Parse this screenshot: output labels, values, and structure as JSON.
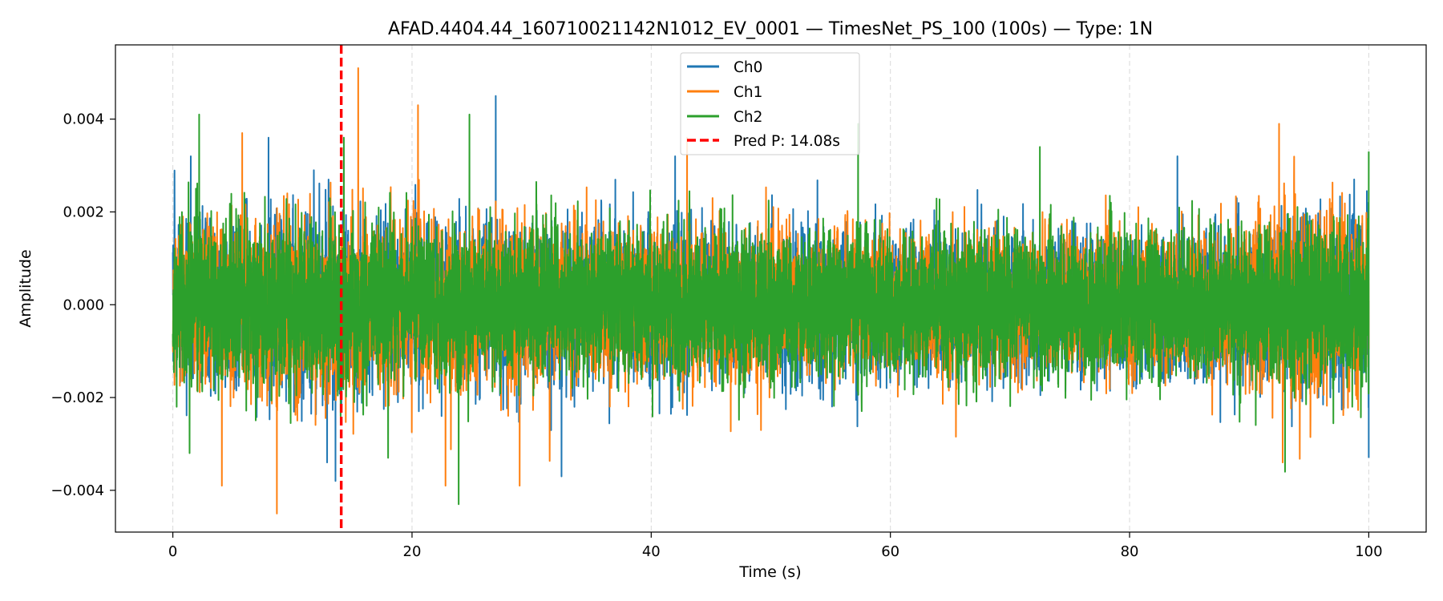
{
  "chart_data": {
    "type": "line",
    "title": "AFAD.4404.44_160710021142N1012_EV_0001 — TimesNet_PS_100 (100s) — Type: 1N",
    "xlabel": "Time (s)",
    "ylabel": "Amplitude",
    "xlim": [
      -4.8,
      104.8
    ],
    "ylim": [
      -0.0049,
      0.0056
    ],
    "x_ticks": [
      0,
      20,
      40,
      60,
      80,
      100
    ],
    "y_ticks": [
      -0.004,
      -0.002,
      0.0,
      0.002,
      0.004
    ],
    "y_tick_labels": [
      "−0.004",
      "−0.002",
      "0.000",
      "0.002",
      "0.004"
    ],
    "grid": "x-only dashed",
    "legend_position": "top-center",
    "sampling_rate_hz": 100,
    "duration_s": 100,
    "series": [
      {
        "name": "Ch0",
        "color": "#1f77b4",
        "envelope": {
          "t": [
            0,
            10,
            20,
            40,
            60,
            80,
            88,
            93,
            100
          ],
          "amp": [
            0.0022,
            0.0024,
            0.0022,
            0.0021,
            0.0019,
            0.0019,
            0.0019,
            0.0023,
            0.0024
          ]
        },
        "peaks": [
          [
            1.5,
            0.0032
          ],
          [
            8.0,
            0.0036
          ],
          [
            12.9,
            -0.0034
          ],
          [
            13.6,
            -0.0038
          ],
          [
            27.0,
            0.0045
          ],
          [
            32.5,
            -0.0037
          ],
          [
            42.0,
            0.0032
          ],
          [
            84.0,
            0.0032
          ],
          [
            100.0,
            0.0036
          ],
          [
            100.0,
            -0.0033
          ]
        ]
      },
      {
        "name": "Ch1",
        "color": "#ff7f0e",
        "envelope": {
          "t": [
            0,
            10,
            20,
            40,
            60,
            80,
            88,
            93,
            100
          ],
          "amp": [
            0.0023,
            0.0025,
            0.0022,
            0.002,
            0.0019,
            0.0019,
            0.002,
            0.0027,
            0.0023
          ]
        },
        "peaks": [
          [
            4.1,
            -0.0039
          ],
          [
            5.8,
            0.0037
          ],
          [
            8.7,
            -0.0045
          ],
          [
            15.5,
            0.0051
          ],
          [
            20.5,
            0.0043
          ],
          [
            22.8,
            -0.0039
          ],
          [
            29.0,
            -0.0039
          ],
          [
            43.0,
            0.0036
          ],
          [
            92.5,
            0.0039
          ],
          [
            92.8,
            -0.0034
          ]
        ]
      },
      {
        "name": "Ch2",
        "color": "#2ca02c",
        "envelope": {
          "t": [
            0,
            10,
            20,
            40,
            60,
            80,
            88,
            93,
            100
          ],
          "amp": [
            0.0021,
            0.0022,
            0.0021,
            0.002,
            0.0019,
            0.0019,
            0.0019,
            0.0021,
            0.0022
          ]
        },
        "peaks": [
          [
            2.2,
            0.0041
          ],
          [
            1.4,
            -0.0032
          ],
          [
            14.3,
            0.0036
          ],
          [
            18.0,
            -0.0033
          ],
          [
            23.9,
            -0.0043
          ],
          [
            24.8,
            0.0041
          ],
          [
            57.3,
            0.0039
          ],
          [
            72.5,
            0.0034
          ],
          [
            93.0,
            -0.0036
          ],
          [
            100.0,
            0.0033
          ]
        ]
      }
    ],
    "markers": [
      {
        "name": "Pred P: 14.08s",
        "x": 14.08,
        "color": "#ff0000",
        "style": "dashed"
      }
    ]
  }
}
